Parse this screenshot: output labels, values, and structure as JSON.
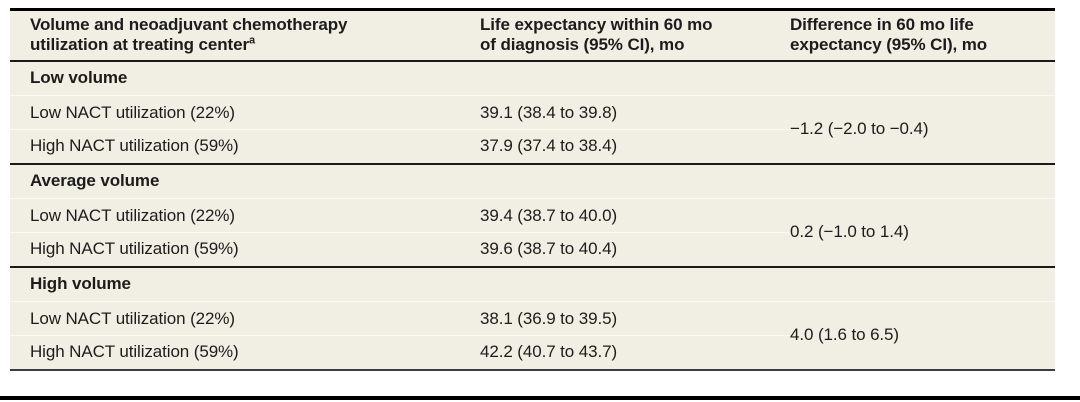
{
  "colors": {
    "table_background": "#f1efe4",
    "heavy_rule": "#1a1a1a",
    "light_rule": "#fbfaf2",
    "table_bottom_rule": "#3d3d3d",
    "text": "#1c1c1c"
  },
  "table": {
    "header": {
      "col1": {
        "line1": "Volume and neoadjuvant chemotherapy",
        "line2": "utilization at treating center",
        "footnote_marker": "a"
      },
      "col2": {
        "line1": "Life expectancy within 60 mo",
        "line2": "of diagnosis (95% CI), mo"
      },
      "col3": {
        "line1": "Difference in 60 mo life",
        "line2": "expectancy (95% CI), mo"
      }
    },
    "sections": [
      {
        "title": "Low volume",
        "rows": [
          {
            "label": "Low NACT utilization (22%)",
            "value": "39.1 (38.4 to 39.8)"
          },
          {
            "label": "High NACT utilization (59%)",
            "value": "37.9 (37.4 to 38.4)"
          }
        ],
        "difference": "−1.2 (−2.0 to −0.4)"
      },
      {
        "title": "Average volume",
        "rows": [
          {
            "label": "Low NACT utilization (22%)",
            "value": "39.4 (38.7 to 40.0)"
          },
          {
            "label": "High NACT utilization (59%)",
            "value": "39.6 (38.7 to 40.4)"
          }
        ],
        "difference": "0.2 (−1.0 to 1.4)"
      },
      {
        "title": "High volume",
        "rows": [
          {
            "label": "Low NACT utilization (22%)",
            "value": "38.1 (36.9 to 39.5)"
          },
          {
            "label": "High NACT utilization (59%)",
            "value": "42.2 (40.7 to 43.7)"
          }
        ],
        "difference": "4.0 (1.6 to 6.5)"
      }
    ]
  }
}
